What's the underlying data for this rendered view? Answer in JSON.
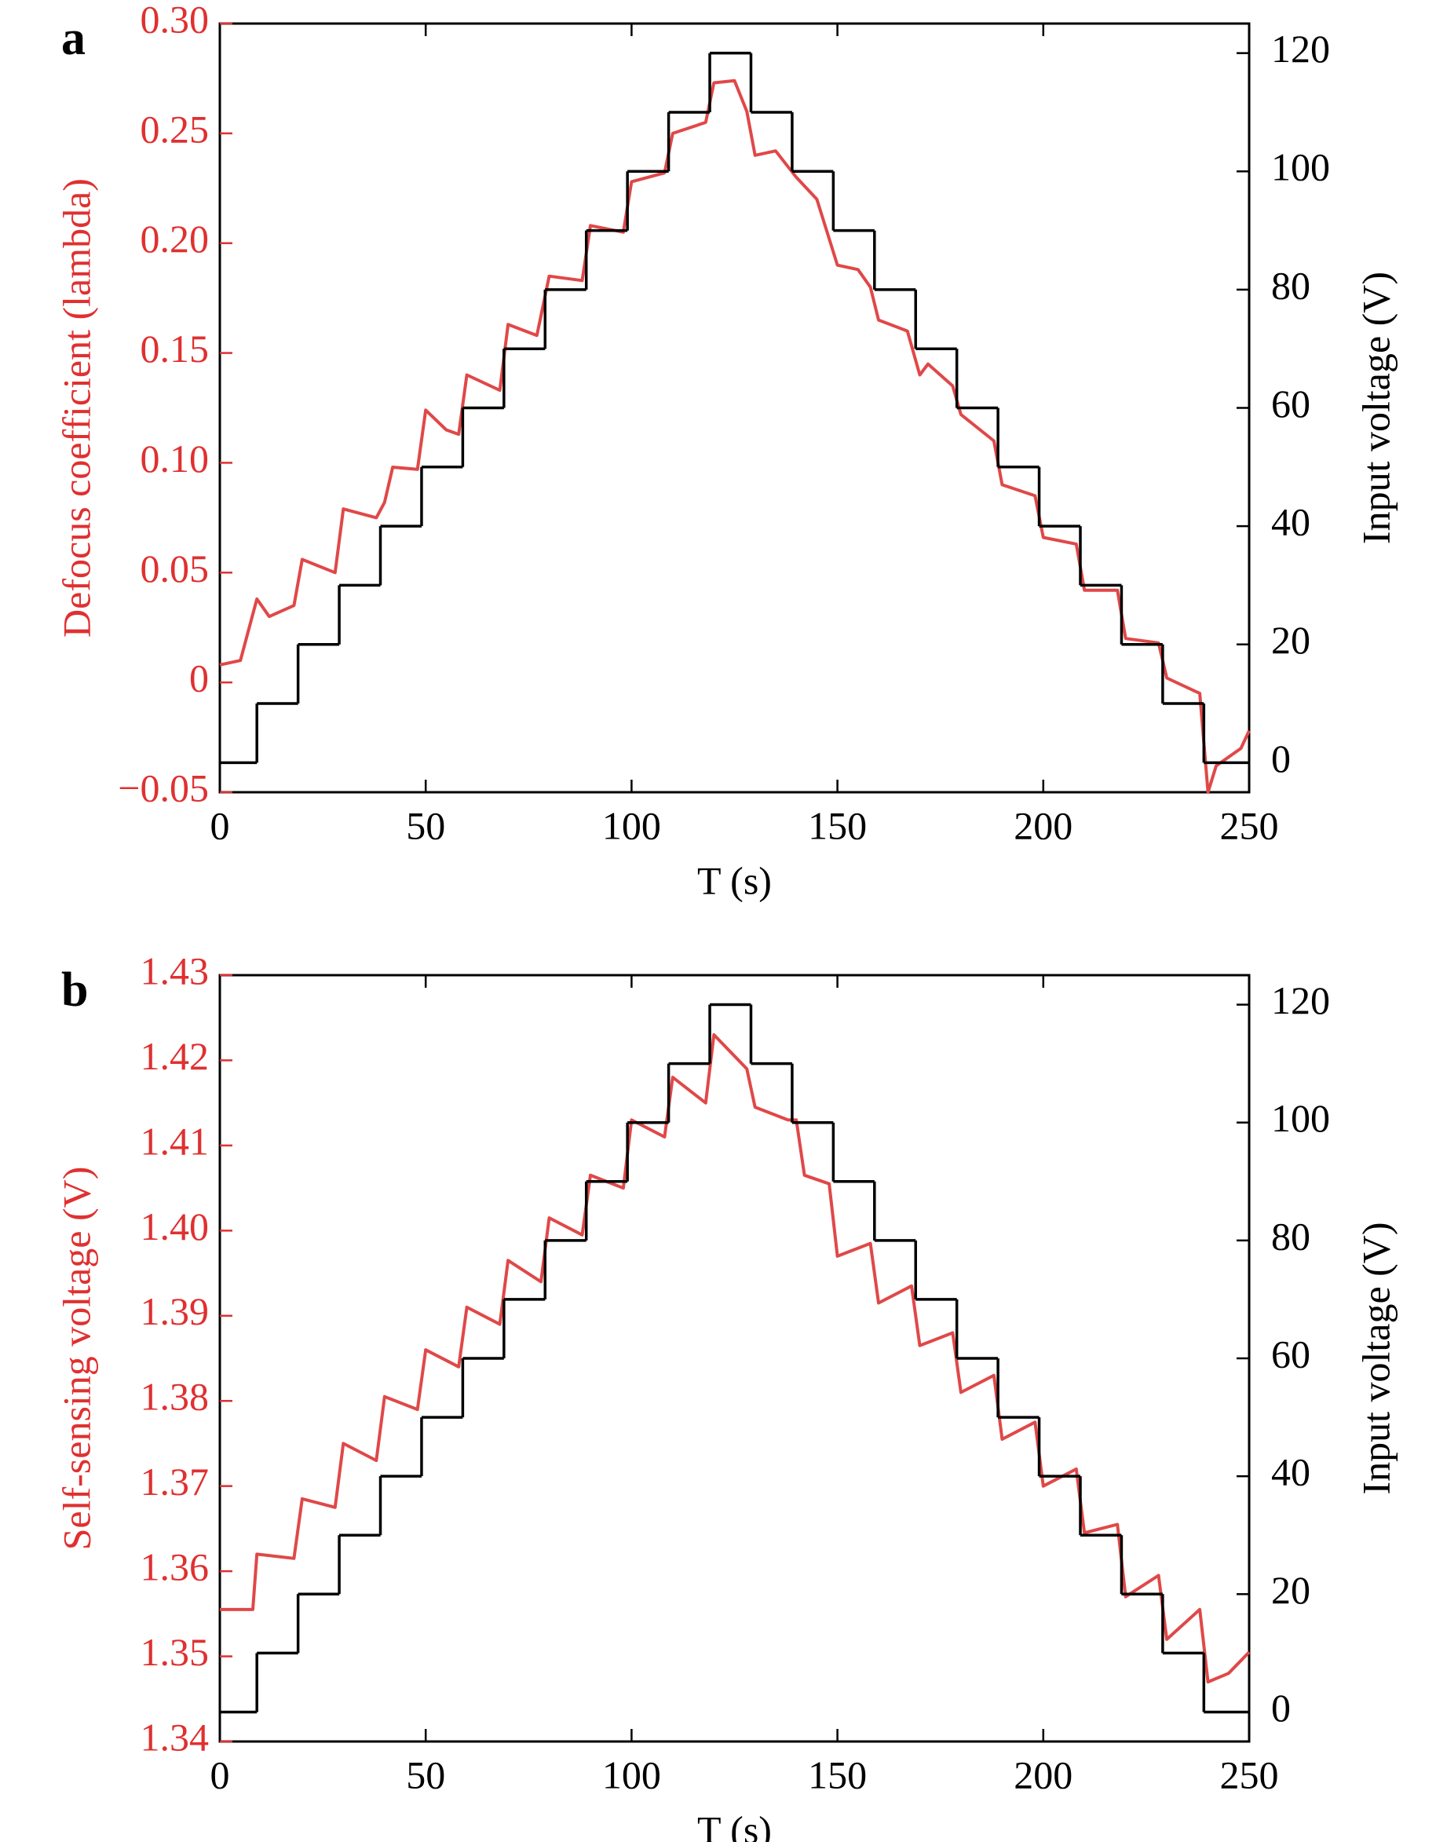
{
  "chart_data": [
    {
      "type": "line",
      "annotation": "a",
      "xlabel": "T (s)",
      "ylabel": "Defocus coefficient (lambda)",
      "y2label": "Input voltage (V)",
      "xlim": [
        0,
        250
      ],
      "xticks": [
        0,
        50,
        100,
        150,
        200,
        250
      ],
      "ylim": [
        -0.05,
        0.3
      ],
      "yticks": [
        {
          "value": -0.05,
          "label": "−0.05"
        },
        0,
        0.05,
        {
          "value": 0.1,
          "label": "0.10"
        },
        0.15,
        {
          "value": 0.2,
          "label": "0.20"
        },
        0.25,
        {
          "value": 0.3,
          "label": "0.30"
        }
      ],
      "y2lim": [
        -5,
        125
      ],
      "y2ticks": [
        0,
        20,
        40,
        60,
        80,
        100,
        120
      ],
      "ycolor": "#e03030",
      "series": [
        {
          "color": "#e04848",
          "style": "line",
          "x": [
            0,
            5,
            9,
            12,
            18,
            20,
            28,
            30,
            38,
            40,
            42,
            48,
            50,
            55,
            58,
            60,
            68,
            70,
            77,
            80,
            88,
            90,
            98,
            100,
            108,
            110,
            118,
            120,
            125,
            128,
            130,
            135,
            140,
            145,
            150,
            155,
            158,
            160,
            167,
            170,
            172,
            178,
            180,
            188,
            190,
            198,
            200,
            208,
            210,
            218,
            220,
            228,
            230,
            238,
            240,
            242,
            248,
            250
          ],
          "values": [
            0.008,
            0.01,
            0.038,
            0.03,
            0.035,
            0.056,
            0.05,
            0.079,
            0.075,
            0.082,
            0.098,
            0.097,
            0.124,
            0.115,
            0.113,
            0.14,
            0.133,
            0.163,
            0.158,
            0.185,
            0.183,
            0.208,
            0.205,
            0.228,
            0.232,
            0.25,
            0.255,
            0.273,
            0.274,
            0.26,
            0.24,
            0.242,
            0.23,
            0.22,
            0.19,
            0.188,
            0.18,
            0.165,
            0.16,
            0.14,
            0.145,
            0.135,
            0.122,
            0.11,
            0.09,
            0.085,
            0.066,
            0.063,
            0.042,
            0.042,
            0.02,
            0.018,
            0.002,
            -0.005,
            -0.05,
            -0.038,
            -0.03,
            -0.022
          ]
        },
        {
          "color": "#000000",
          "style": "step",
          "axis": "y2",
          "x": [
            0,
            9,
            19,
            29,
            39,
            49,
            59,
            69,
            79,
            89,
            99,
            109,
            119,
            129,
            139,
            149,
            159,
            169,
            179,
            189,
            199,
            209,
            219,
            229,
            239
          ],
          "values": [
            0,
            10,
            20,
            30,
            40,
            50,
            60,
            70,
            80,
            90,
            100,
            110,
            120,
            110,
            100,
            90,
            80,
            70,
            60,
            50,
            40,
            30,
            20,
            10,
            0
          ]
        }
      ]
    },
    {
      "type": "line",
      "annotation": "b",
      "xlabel": "T (s)",
      "ylabel": "Self-sensing voltage (V)",
      "y2label": "Input voltage (V)",
      "xlim": [
        0,
        250
      ],
      "xticks": [
        0,
        50,
        100,
        150,
        200,
        250
      ],
      "ylim": [
        1.34,
        1.43
      ],
      "yticks": [
        1.34,
        1.35,
        1.36,
        1.37,
        1.38,
        1.39,
        {
          "value": 1.4,
          "label": "1.40"
        },
        1.41,
        1.42,
        1.43
      ],
      "y2lim": [
        -5,
        125
      ],
      "y2ticks": [
        0,
        20,
        40,
        60,
        80,
        100,
        120
      ],
      "ycolor": "#e03030",
      "series": [
        {
          "color": "#e04848",
          "style": "line",
          "x": [
            0,
            8,
            9,
            18,
            20,
            28,
            30,
            38,
            40,
            48,
            50,
            58,
            60,
            68,
            70,
            78,
            80,
            88,
            90,
            98,
            100,
            108,
            110,
            118,
            120,
            128,
            130,
            138,
            140,
            142,
            148,
            150,
            158,
            160,
            168,
            170,
            178,
            180,
            188,
            190,
            198,
            200,
            208,
            210,
            218,
            220,
            228,
            230,
            238,
            240,
            245,
            250
          ],
          "values": [
            1.3555,
            1.3555,
            1.362,
            1.3615,
            1.3685,
            1.3675,
            1.375,
            1.373,
            1.3805,
            1.379,
            1.386,
            1.384,
            1.391,
            1.389,
            1.3965,
            1.394,
            1.4015,
            1.3995,
            1.4065,
            1.405,
            1.413,
            1.411,
            1.418,
            1.415,
            1.423,
            1.419,
            1.4145,
            1.413,
            1.413,
            1.4065,
            1.4055,
            1.397,
            1.3985,
            1.3915,
            1.3935,
            1.3865,
            1.388,
            1.381,
            1.383,
            1.3755,
            1.3775,
            1.37,
            1.372,
            1.3645,
            1.3655,
            1.357,
            1.3595,
            1.352,
            1.3555,
            1.347,
            1.348,
            1.3505
          ]
        },
        {
          "color": "#000000",
          "style": "step",
          "axis": "y2",
          "x": [
            0,
            9,
            19,
            29,
            39,
            49,
            59,
            69,
            79,
            89,
            99,
            109,
            119,
            129,
            139,
            149,
            159,
            169,
            179,
            189,
            199,
            209,
            219,
            229,
            239
          ],
          "values": [
            0,
            10,
            20,
            30,
            40,
            50,
            60,
            70,
            80,
            90,
            100,
            110,
            120,
            110,
            100,
            90,
            80,
            70,
            60,
            50,
            40,
            30,
            20,
            10,
            0
          ]
        }
      ]
    }
  ]
}
